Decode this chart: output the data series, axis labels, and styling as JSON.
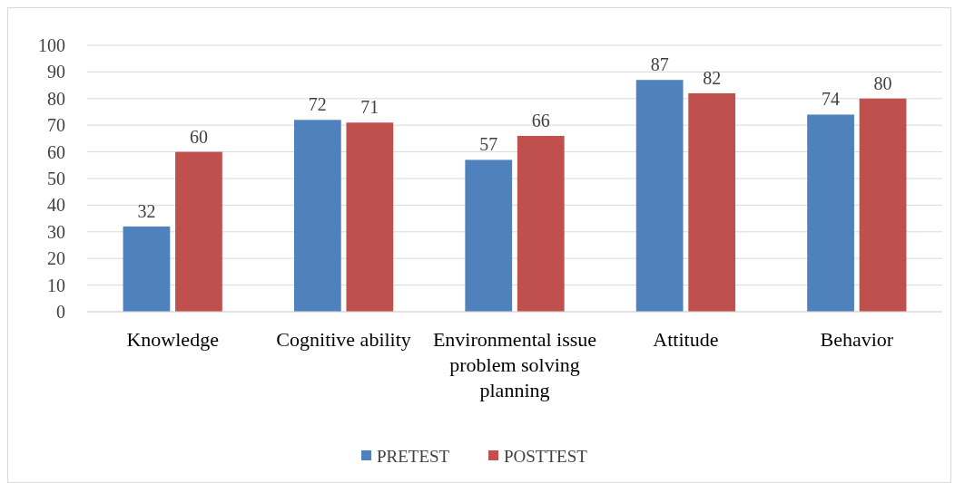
{
  "chart_data": {
    "type": "bar",
    "categories": [
      "Knowledge",
      "Cognitive ability",
      "Environmental issue problem solving planning",
      "Attitude",
      "Behavior"
    ],
    "series": [
      {
        "name": "PRETEST",
        "color": "#4f81bd",
        "values": [
          32,
          72,
          57,
          87,
          74
        ]
      },
      {
        "name": "POSTTEST",
        "color": "#c0504d",
        "values": [
          60,
          71,
          66,
          82,
          80
        ]
      }
    ],
    "ylim": [
      0,
      100
    ],
    "yticks": [
      0,
      10,
      20,
      30,
      40,
      50,
      60,
      70,
      80,
      90,
      100
    ],
    "grid": "y",
    "data_labels": true,
    "legend": "bottom"
  }
}
